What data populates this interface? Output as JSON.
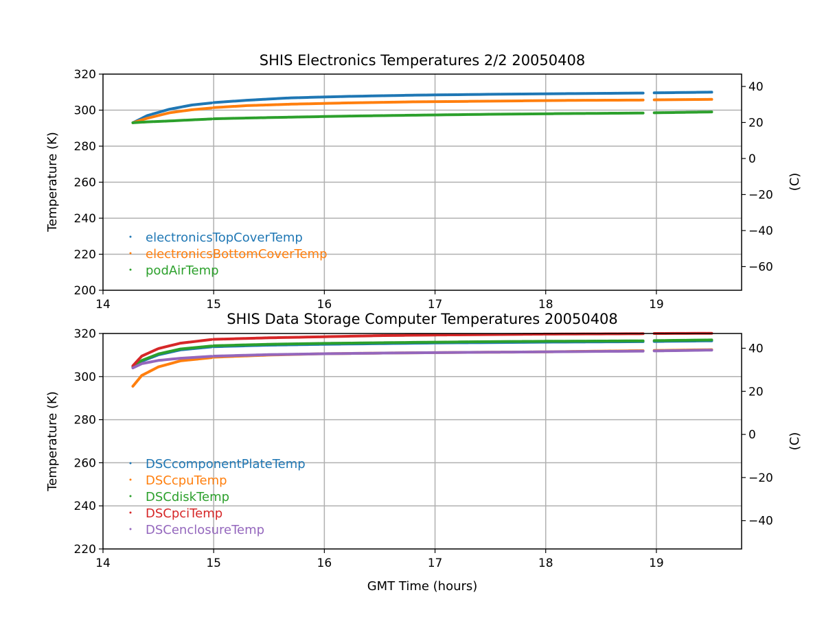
{
  "chart_data": [
    {
      "type": "scatter",
      "title": "SHIS Electronics Temperatures 2/2 20050408",
      "xlabel": "",
      "ylabel": "Temperature (K)",
      "ylabel_right": "(C)",
      "xlim": [
        14,
        19.77
      ],
      "ylim": [
        200,
        320
      ],
      "xticks": [
        14,
        15,
        16,
        17,
        18,
        19
      ],
      "yticks": [
        200,
        220,
        240,
        260,
        280,
        300,
        320
      ],
      "yticks_right": [
        40,
        20,
        0,
        -20,
        -40,
        -60
      ],
      "grid": true,
      "legend_position": "lower-left",
      "gaps": [
        [
          14.98,
          15.0
        ],
        [
          18.88,
          18.98
        ]
      ],
      "x": [
        14.27,
        14.4,
        14.6,
        14.8,
        14.98,
        15.0,
        15.3,
        15.7,
        16.2,
        16.8,
        17.5,
        18.2,
        18.88,
        18.98,
        19.5
      ],
      "series": [
        {
          "name": "electronicsTopCoverTemp",
          "color": "#1f77b4",
          "values": [
            293,
            297,
            300.5,
            302.8,
            304,
            304.2,
            305.5,
            306.8,
            307.6,
            308.3,
            308.8,
            309.2,
            309.5,
            309.6,
            310
          ]
        },
        {
          "name": "electronicsBottomCoverTemp",
          "color": "#ff7f0e",
          "values": [
            293,
            295.5,
            298.5,
            300.2,
            301.2,
            301.4,
            302.5,
            303.3,
            304,
            304.6,
            305,
            305.4,
            305.6,
            305.7,
            306
          ]
        },
        {
          "name": "podAirTemp",
          "color": "#2ca02c",
          "values": [
            293,
            293.5,
            294,
            294.6,
            295.1,
            295.2,
            295.6,
            296.1,
            296.7,
            297.2,
            297.7,
            298.1,
            298.4,
            298.5,
            299
          ]
        }
      ]
    },
    {
      "type": "scatter",
      "title": "SHIS Data Storage Computer Temperatures 20050408",
      "xlabel": "GMT Time (hours)",
      "ylabel": "Temperature (K)",
      "ylabel_right": "(C)",
      "xlim": [
        14,
        19.77
      ],
      "ylim": [
        220,
        320
      ],
      "xticks": [
        14,
        15,
        16,
        17,
        18,
        19
      ],
      "yticks": [
        220,
        240,
        260,
        280,
        300,
        320
      ],
      "yticks_right": [
        40,
        20,
        0,
        -20,
        -40
      ],
      "grid": true,
      "legend_position": "lower-left",
      "gaps": [
        [
          14.98,
          15.0
        ],
        [
          18.88,
          18.98
        ]
      ],
      "x": [
        14.27,
        14.35,
        14.5,
        14.7,
        14.98,
        15.0,
        15.5,
        16,
        16.5,
        17,
        17.5,
        18,
        18.5,
        18.88,
        18.98,
        19.5
      ],
      "series": [
        {
          "name": "DSCcomponentPlateTemp",
          "color": "#1f77b4",
          "values": [
            304.2,
            307.1,
            310.1,
            312.4,
            313.8,
            313.9,
            314.6,
            315.0,
            315.3,
            315.6,
            315.8,
            316.0,
            316.1,
            316.2,
            316.3,
            316.6
          ]
        },
        {
          "name": "DSCcpuTemp",
          "color": "#ff7f0e",
          "values": [
            295.5,
            300.5,
            304.5,
            307.3,
            308.8,
            309,
            310,
            310.6,
            310.9,
            311.1,
            311.3,
            311.5,
            311.8,
            312,
            312.1,
            312.5
          ]
        },
        {
          "name": "DSCdiskTemp",
          "color": "#2ca02c",
          "values": [
            304.5,
            307.5,
            310.5,
            312.8,
            314.2,
            314.3,
            315,
            315.4,
            315.7,
            316,
            316.2,
            316.4,
            316.5,
            316.6,
            316.7,
            317
          ]
        },
        {
          "name": "DSCpciTemp",
          "color": "#d62728",
          "values": [
            305,
            309.5,
            313,
            315.5,
            317.2,
            317.3,
            318,
            318.5,
            319,
            319.3,
            319.5,
            319.7,
            319.8,
            319.9,
            320,
            320.1
          ]
        },
        {
          "name": "DSCenclosureTemp",
          "color": "#9467bd",
          "values": [
            304,
            306,
            307.5,
            308.5,
            309.4,
            309.5,
            310.2,
            310.6,
            310.9,
            311.1,
            311.3,
            311.5,
            311.7,
            311.8,
            311.9,
            312.3
          ]
        }
      ]
    }
  ]
}
